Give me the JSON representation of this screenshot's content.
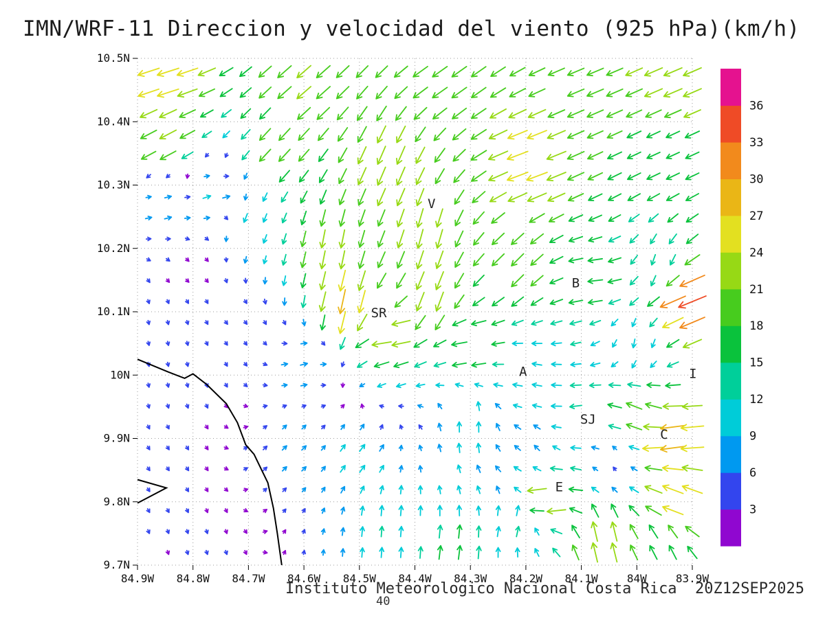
{
  "title": "IMN/WRF-11 Direccion y velocidad del viento (925 hPa)(km/h)",
  "footer": "Instituto Meteorologico Nacional Costa Rica  20Z12SEP2025",
  "page_number": "40",
  "chart_data": {
    "type": "vector-field",
    "model": "IMN/WRF-11",
    "variable": "Direccion y velocidad del viento",
    "level": "925 hPa",
    "units": "km/h",
    "valid_time": "20Z12SEP2025",
    "source": "Instituto Meteorologico Nacional Costa Rica",
    "axes": {
      "lon_min": -84.9,
      "lon_max": -83.9,
      "lat_min": 9.7,
      "lat_max": 10.5,
      "grid": "dotted",
      "x_ticks": [
        {
          "label": "84.9W",
          "lon": -84.9
        },
        {
          "label": "84.8W",
          "lon": -84.8
        },
        {
          "label": "84.7W",
          "lon": -84.7
        },
        {
          "label": "84.6W",
          "lon": -84.6
        },
        {
          "label": "84.5W",
          "lon": -84.5
        },
        {
          "label": "84.4W",
          "lon": -84.4
        },
        {
          "label": "84.3W",
          "lon": -84.3
        },
        {
          "label": "84.2W",
          "lon": -84.2
        },
        {
          "label": "84.1W",
          "lon": -84.1
        },
        {
          "label": "84W",
          "lon": -84.0
        },
        {
          "label": "83.9W",
          "lon": -83.9
        }
      ],
      "y_ticks": [
        {
          "label": "10.5N",
          "lat": 10.5
        },
        {
          "label": "10.4N",
          "lat": 10.4
        },
        {
          "label": "10.3N",
          "lat": 10.3
        },
        {
          "label": "10.2N",
          "lat": 10.2
        },
        {
          "label": "10.1N",
          "lat": 10.1
        },
        {
          "label": "10N",
          "lat": 10.0
        },
        {
          "label": "9.9N",
          "lat": 9.9
        },
        {
          "label": "9.8N",
          "lat": 9.8
        },
        {
          "label": "9.7N",
          "lat": 9.7
        }
      ]
    },
    "colorbar": {
      "levels": [
        3,
        6,
        9,
        12,
        15,
        18,
        21,
        24,
        27,
        30,
        33,
        36
      ],
      "colors": [
        "#9007d0",
        "#3345ee",
        "#0099f0",
        "#00ccd8",
        "#00cf9a",
        "#0ac23c",
        "#47cc1e",
        "#97d915",
        "#e3e020",
        "#eab616",
        "#f28a1c",
        "#ef4b26",
        "#e5128f"
      ]
    },
    "stations": [
      {
        "label": "V",
        "lon": -84.37,
        "lat": 10.27
      },
      {
        "label": "B",
        "lon": -84.11,
        "lat": 10.145
      },
      {
        "label": "SR",
        "lon": -84.465,
        "lat": 10.098
      },
      {
        "label": "A",
        "lon": -84.205,
        "lat": 10.005
      },
      {
        "label": "SJ",
        "lon": -84.088,
        "lat": 9.93
      },
      {
        "label": "C",
        "lon": -83.951,
        "lat": 9.906
      },
      {
        "label": "E",
        "lon": -84.14,
        "lat": 9.823
      },
      {
        "label": "I",
        "lon": -83.899,
        "lat": 10.002
      }
    ],
    "coastline": [
      [
        [
          -84.9,
          10.025
        ],
        [
          -84.845,
          10.005
        ],
        [
          -84.815,
          9.995
        ],
        [
          -84.8,
          10.002
        ],
        [
          -84.775,
          9.985
        ],
        [
          -84.74,
          9.955
        ],
        [
          -84.72,
          9.925
        ],
        [
          -84.705,
          9.89
        ],
        [
          -84.69,
          9.875
        ],
        [
          -84.665,
          9.83
        ],
        [
          -84.655,
          9.79
        ],
        [
          -84.648,
          9.75
        ],
        [
          -84.64,
          9.7
        ]
      ],
      [
        [
          -84.9,
          9.835
        ],
        [
          -84.848,
          9.822
        ],
        [
          -84.9,
          9.798
        ]
      ]
    ],
    "wind_grid": {
      "lon_start": -84.88,
      "lon_step": 0.035,
      "nx": 29,
      "lat_start": 9.72,
      "lat_step": 0.033,
      "ny": 24
    },
    "control_points_format": [
      "lon",
      "lat",
      "u_kmh_east",
      "v_kmh_north"
    ],
    "control_points": [
      [
        -84.85,
        10.47,
        -25,
        -8
      ],
      [
        -84.6,
        10.46,
        -16,
        -14
      ],
      [
        -84.35,
        10.47,
        -17,
        -12
      ],
      [
        -84.1,
        10.46,
        -19,
        -8
      ],
      [
        -83.93,
        10.46,
        -21,
        -9
      ],
      [
        -84.85,
        10.37,
        -19,
        -10
      ],
      [
        -84.65,
        10.35,
        -13,
        -14
      ],
      [
        -84.45,
        10.33,
        -9,
        -21
      ],
      [
        -84.2,
        10.33,
        -24,
        -9
      ],
      [
        -83.95,
        10.35,
        -15,
        -7
      ],
      [
        -84.85,
        10.26,
        8,
        2
      ],
      [
        -84.76,
        10.28,
        9,
        3
      ],
      [
        -84.7,
        10.24,
        -4,
        -10
      ],
      [
        -84.8,
        10.17,
        2,
        -2
      ],
      [
        -84.55,
        10.2,
        -4,
        -21
      ],
      [
        -84.38,
        10.22,
        -6,
        -22
      ],
      [
        -84.52,
        10.11,
        -6,
        -28
      ],
      [
        -84.37,
        10.12,
        -8,
        -22
      ],
      [
        -84.22,
        10.17,
        -14,
        -14
      ],
      [
        -84.08,
        10.15,
        -17,
        -2
      ],
      [
        -83.96,
        10.17,
        -4,
        -12
      ],
      [
        -83.91,
        10.12,
        -32,
        -13
      ],
      [
        -84.45,
        10.07,
        -23,
        -3
      ],
      [
        -84.3,
        10.05,
        -18,
        -3
      ],
      [
        -84.85,
        10.05,
        1,
        -4
      ],
      [
        -84.72,
        10.08,
        3,
        -4
      ],
      [
        -84.6,
        10.02,
        8,
        2
      ],
      [
        -84.0,
        10.05,
        -2,
        -10
      ],
      [
        -84.85,
        9.85,
        2,
        -3
      ],
      [
        -84.78,
        9.73,
        1,
        -3
      ],
      [
        -84.62,
        9.88,
        5,
        5
      ],
      [
        -84.5,
        9.87,
        6,
        8
      ],
      [
        -84.45,
        9.76,
        1,
        12
      ],
      [
        -84.33,
        9.72,
        2,
        16
      ],
      [
        -84.22,
        9.77,
        3,
        12
      ],
      [
        -84.3,
        9.92,
        0,
        12
      ],
      [
        -84.2,
        10.0,
        -11,
        2
      ],
      [
        -84.18,
        9.88,
        -6,
        6
      ],
      [
        -84.1,
        9.93,
        -14,
        -2
      ],
      [
        -84.04,
        9.86,
        -3,
        4
      ],
      [
        -84.0,
        9.94,
        -18,
        7
      ],
      [
        -83.94,
        9.9,
        -29,
        -4
      ],
      [
        -83.93,
        9.8,
        -24,
        9
      ],
      [
        -84.16,
        9.81,
        -24,
        -4
      ],
      [
        -84.06,
        9.74,
        -5,
        23
      ],
      [
        -83.95,
        9.73,
        -8,
        16
      ]
    ]
  }
}
